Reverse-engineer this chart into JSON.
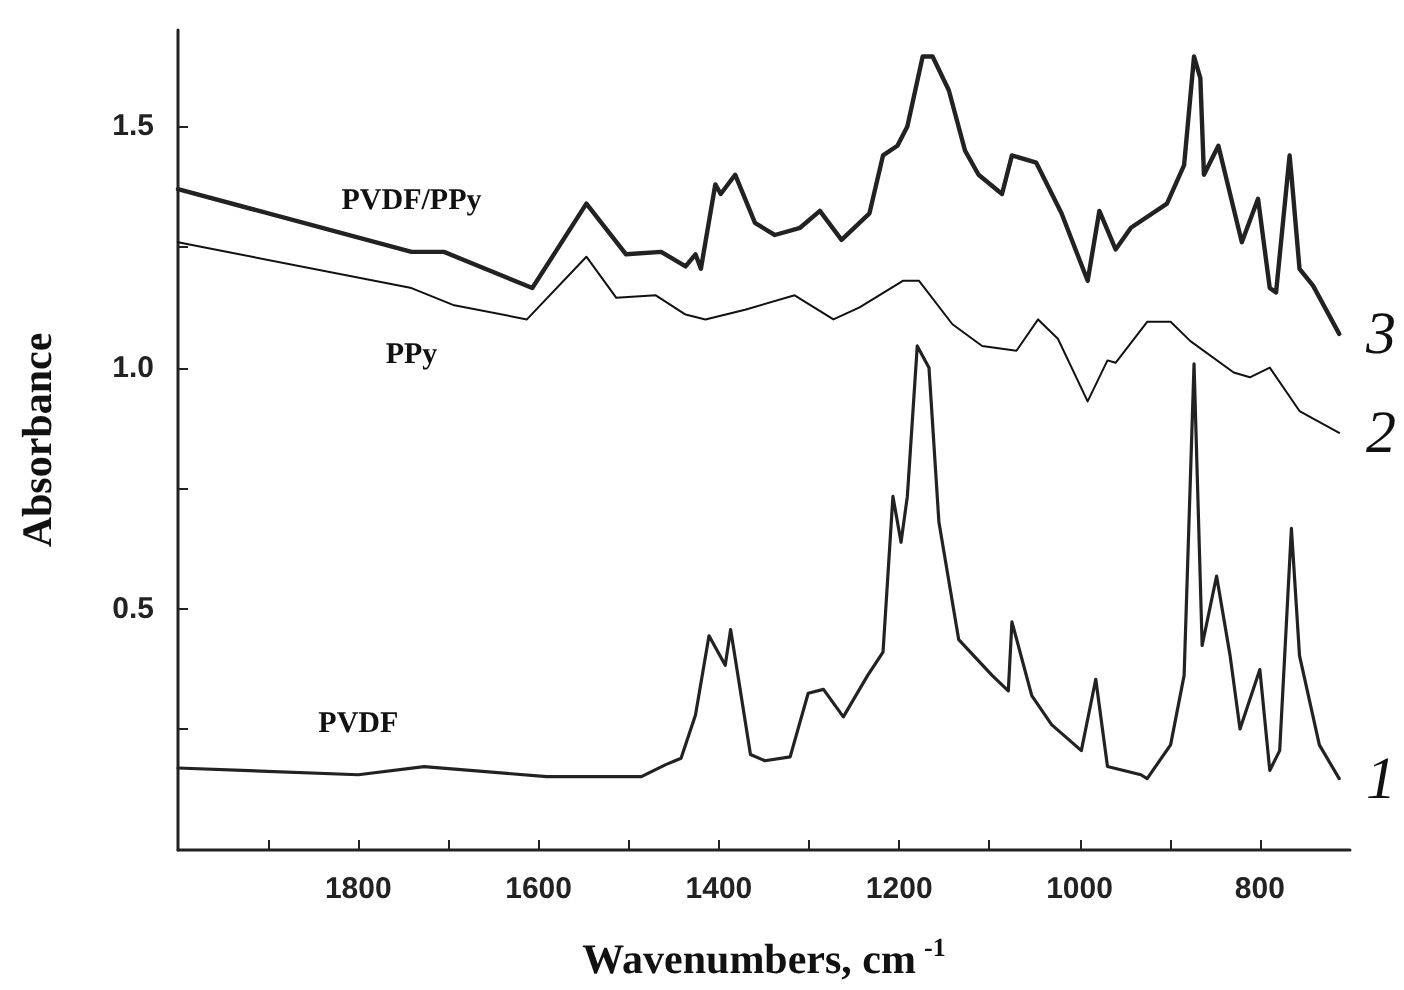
{
  "chart_data": {
    "type": "line",
    "xlabel": "Wavenumbers, cm$^{-1}$",
    "ylabel": "Absorbance",
    "xlim": [
      2000,
      700
    ],
    "ylim": [
      0,
      1.7
    ],
    "xticks": [
      {
        "value": 1900,
        "label": null
      },
      1800,
      {
        "value": 1700,
        "label": null
      },
      1600,
      {
        "value": 1500,
        "label": null
      },
      1400,
      {
        "value": 1300,
        "label": null
      },
      1200,
      {
        "value": 1100,
        "label": null
      },
      1000,
      {
        "value": 900,
        "label": null
      },
      800
    ],
    "yticks": [
      {
        "value": 0.25,
        "label": null
      },
      0.5,
      {
        "value": 0.75,
        "label": null
      },
      {
        "value": 1,
        "label": "1.0"
      },
      {
        "value": 1.25,
        "label": null
      },
      1.5
    ],
    "grid": false,
    "legend": false,
    "marker": "none",
    "line_style": "solid",
    "annotations": [
      "3",
      "2",
      "1"
    ],
    "series": [
      {
        "name": "PVDF/PPy",
        "color": "#222222",
        "x": [
          2000,
          1741,
          1705,
          1607,
          1547,
          1503,
          1464,
          1437,
          1426,
          1420,
          1404,
          1398,
          1382,
          1360,
          1338,
          1310,
          1288,
          1264,
          1233,
          1218,
          1202,
          1191,
          1174,
          1163,
          1145,
          1127,
          1112,
          1086,
          1075,
          1048,
          1020,
          991,
          978,
          960,
          943,
          903,
          884,
          873,
          866,
          862,
          846,
          833,
          820,
          802,
          789,
          782,
          767,
          765,
          756,
          741,
          712
        ],
        "values": [
          1.37,
          1.24,
          1.24,
          1.165,
          1.34,
          1.235,
          1.24,
          1.21,
          1.235,
          1.205,
          1.38,
          1.36,
          1.4,
          1.3,
          1.275,
          1.29,
          1.325,
          1.265,
          1.32,
          1.44,
          1.46,
          1.5,
          1.645,
          1.645,
          1.575,
          1.45,
          1.4,
          1.36,
          1.44,
          1.425,
          1.32,
          1.18,
          1.325,
          1.245,
          1.29,
          1.34,
          1.42,
          1.645,
          1.6,
          1.4,
          1.46,
          1.36,
          1.26,
          1.35,
          1.165,
          1.156,
          1.44,
          1.4,
          1.205,
          1.17,
          1.07
        ]
      },
      {
        "name": "PPy",
        "color": "#111111",
        "x": [
          2000,
          1741,
          1695,
          1613,
          1547,
          1514,
          1470,
          1437,
          1415,
          1371,
          1316,
          1273,
          1244,
          1196,
          1178,
          1141,
          1108,
          1070,
          1046,
          1024,
          991,
          969,
          960,
          925,
          899,
          877,
          829,
          811,
          789,
          756,
          712
        ],
        "values": [
          1.26,
          1.165,
          1.13,
          1.1,
          1.23,
          1.145,
          1.15,
          1.11,
          1.1,
          1.12,
          1.15,
          1.1,
          1.125,
          1.18,
          1.18,
          1.09,
          1.045,
          1.035,
          1.1,
          1.06,
          0.93,
          1.015,
          1.01,
          1.095,
          1.095,
          1.055,
          0.99,
          0.98,
          1.0,
          0.91,
          0.865
        ]
      },
      {
        "name": "PVDF",
        "color": "#222222",
        "x": [
          2000,
          1800,
          1727,
          1591,
          1486,
          1459,
          1442,
          1426,
          1411,
          1393,
          1387,
          1365,
          1349,
          1321,
          1301,
          1284,
          1262,
          1235,
          1218,
          1207,
          1198,
          1191,
          1180,
          1167,
          1156,
          1134,
          1097,
          1079,
          1075,
          1053,
          1031,
          998,
          982,
          969,
          932,
          925,
          899,
          884,
          873,
          864,
          848,
          833,
          822,
          800,
          789,
          778,
          765,
          756,
          734,
          712
        ],
        "values": [
          0.17,
          0.156,
          0.173,
          0.152,
          0.152,
          0.177,
          0.19,
          0.28,
          0.444,
          0.383,
          0.457,
          0.198,
          0.185,
          0.193,
          0.325,
          0.333,
          0.276,
          0.362,
          0.41,
          0.733,
          0.638,
          0.733,
          1.045,
          1.0,
          0.68,
          0.436,
          0.362,
          0.33,
          0.473,
          0.32,
          0.26,
          0.206,
          0.354,
          0.173,
          0.156,
          0.148,
          0.218,
          0.362,
          1.008,
          0.424,
          0.568,
          0.403,
          0.251,
          0.374,
          0.165,
          0.206,
          0.667,
          0.403,
          0.218,
          0.148
        ]
      }
    ]
  }
}
